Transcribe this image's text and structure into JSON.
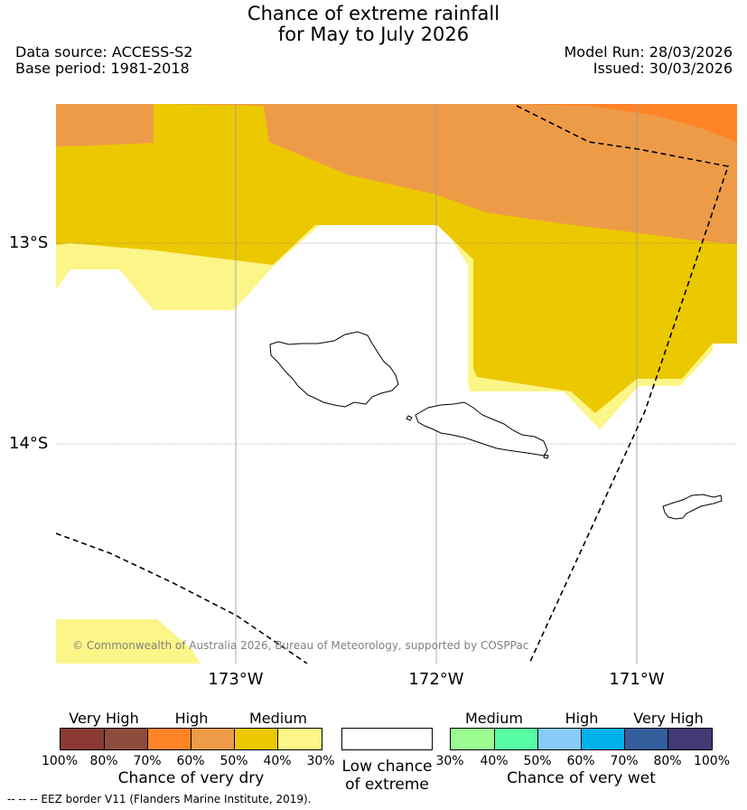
{
  "title": {
    "line1": "Chance of extreme rainfall",
    "line2": "for May to July 2026"
  },
  "info": {
    "data_source": "Data source: ACCESS-S2",
    "base_period": "Base period: 1981-2018",
    "model_run": "Model Run: 28/03/2026",
    "issued": "Issued: 30/03/2026"
  },
  "map": {
    "lat_labels": [
      "13°S",
      "14°S"
    ],
    "lon_labels": [
      "173°W",
      "172°W",
      "171°W"
    ],
    "copyright": "© Commonwealth of Australia 2026, Bureau of Meteorology, supported by COSPPac"
  },
  "legend": {
    "dry": {
      "heads": [
        "Very High",
        "High",
        "Medium"
      ],
      "ticks": [
        "100%",
        "80%",
        "70%",
        "60%",
        "50%",
        "40%",
        "30%"
      ],
      "title": "Chance of very dry",
      "colors": [
        "#8b3a33",
        "#8c4d3c",
        "#ff8427",
        "#ee9b48",
        "#ecc800",
        "#fcf588"
      ]
    },
    "low": {
      "line1": "Low chance",
      "line2": "of extreme",
      "color": "#ffffff"
    },
    "wet": {
      "heads": [
        "Medium",
        "High",
        "Very High"
      ],
      "ticks": [
        "30%",
        "40%",
        "50%",
        "60%",
        "70%",
        "80%",
        "100%"
      ],
      "title": "Chance of very wet",
      "colors": [
        "#9bfc91",
        "#57fca3",
        "#88cbf7",
        "#00b1e9",
        "#355e9c",
        "#413a75"
      ]
    }
  },
  "footnote": "--  --  -- EEZ border V11 (Flanders Marine Institute, 2019)."
}
